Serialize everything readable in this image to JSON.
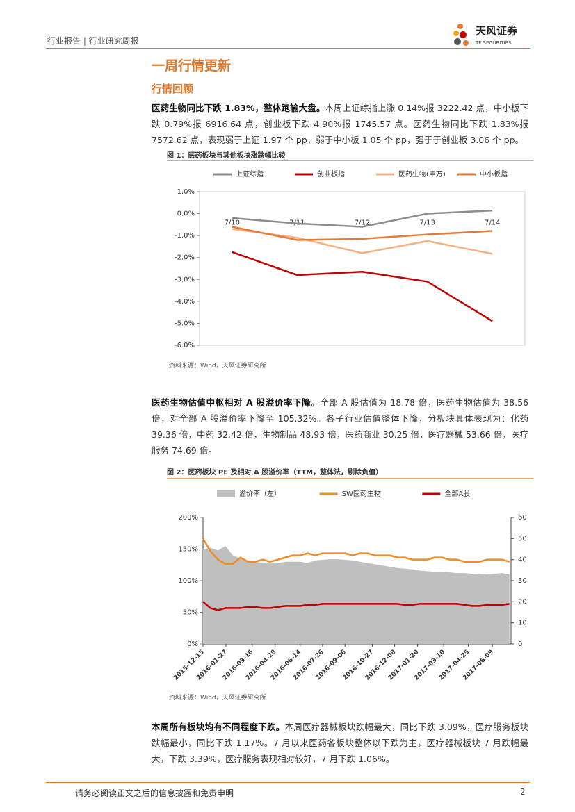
{
  "header": {
    "left": "行业报告 | 行业研究周报",
    "logo_cn": "天风证券",
    "logo_en": "TF SECURITIES"
  },
  "section_title": "一周行情更新",
  "subsection_title": "行情回顾",
  "paragraphs": [
    {
      "lead": "医药生物同比下跌 1.83%，整体跑输大盘。",
      "body": "本周上证综指上涨 0.14%报 3222.42 点，中小板下跌 0.79%报 6916.64 点，创业板下跌 4.90%报 1745.57 点。医药生物同比下跌 1.83%报 7572.62 点，表现弱于上证 1.97 个 pp，弱于中小板 1.05 个 pp，强于于创业板 3.06 个 pp。"
    },
    {
      "lead": "医药生物估值中枢相对 A 股溢价率下降。",
      "body": "全部 A 股估值为 18.78 倍，医药生物估值为 38.56 倍，对全部 A 股溢价率下降至 105.32%。各子行业估值整体下降，分板块具体表现为：化药 39.36 倍，中药 32.42 倍，生物制品 48.93 倍，医药商业 30.25 倍，医疗器械 53.66 倍，医疗服务 74.69 倍。"
    },
    {
      "lead": "本周所有板块均有不同程度下跌。",
      "body": "本周医疗器械板块跌幅最大，同比下跌 3.09%，医疗服务板块跌幅最小，同比下跌 1.17%。7 月以来医药各板块整体以下跌为主，医疗器械板块 7 月跌幅最大，下跌 3.39%，医疗服务表现相对较好，7 月下跌 1.06%。"
    }
  ],
  "figures": [
    {
      "title": "图 1：医药板块与其他板块涨跌幅比较",
      "source": "资料来源：Wind，天风证券研究所"
    },
    {
      "title": "图 2：医药板块 PE 及相对 A 股溢价率（TTM，整体法，剔除负值）",
      "source": "资料来源：Wind，天风证券研究所"
    }
  ],
  "chart_data": [
    {
      "type": "line",
      "categories": [
        "7/10",
        "7/11",
        "7/12",
        "7/13",
        "7/14"
      ],
      "series": [
        {
          "name": "上证综指",
          "color": "#8c8c8c",
          "values": [
            -0.2,
            -0.45,
            -0.6,
            0.0,
            0.14
          ]
        },
        {
          "name": "创业板指",
          "color": "#c00000",
          "values": [
            -1.75,
            -2.8,
            -2.65,
            -3.1,
            -4.9
          ]
        },
        {
          "name": "医药生物(申万)",
          "color": "#f4b183",
          "values": [
            -0.7,
            -1.1,
            -1.8,
            -1.25,
            -1.83
          ]
        },
        {
          "name": "中小板指",
          "color": "#e07b39",
          "values": [
            -0.6,
            -1.2,
            -1.15,
            -0.95,
            -0.79
          ]
        }
      ],
      "ylim": [
        -6,
        1
      ],
      "yticks": [
        {
          "value": -6,
          "label": "-6.0%"
        },
        {
          "value": -5,
          "label": "-5.0%"
        },
        {
          "value": -4,
          "label": "-4.0%"
        },
        {
          "value": -3,
          "label": "-3.0%"
        },
        {
          "value": -2,
          "label": "-2.0%"
        },
        {
          "value": -1,
          "label": "-1.0%"
        },
        {
          "value": 0,
          "label": "0.0%"
        },
        {
          "value": 1,
          "label": "1.0%"
        }
      ],
      "legend": "top"
    },
    {
      "type": "combo",
      "x": [
        "2015-12-15",
        "2015-12-29",
        "2016-01-12",
        "2016-01-26",
        "2016-02-09",
        "2016-02-23",
        "2016-03-08",
        "2016-03-22",
        "2016-04-05",
        "2016-04-19",
        "2016-05-03",
        "2016-05-17",
        "2016-05-31",
        "2016-06-14",
        "2016-06-28",
        "2016-07-12",
        "2016-07-26",
        "2016-08-09",
        "2016-08-23",
        "2016-09-06",
        "2016-09-20",
        "2016-10-04",
        "2016-10-18",
        "2016-11-01",
        "2016-11-15",
        "2016-11-29",
        "2016-12-13",
        "2016-12-27",
        "2017-01-10",
        "2017-01-24",
        "2017-02-07",
        "2017-02-21",
        "2017-03-07",
        "2017-03-21",
        "2017-04-04",
        "2017-04-18",
        "2017-05-02",
        "2017-05-16",
        "2017-05-30",
        "2017-06-13",
        "2017-06-27",
        "2017-07-11"
      ],
      "series": [
        {
          "name": "溢价率（左）",
          "kind": "area",
          "color": "#bfbfbf",
          "values": [
            150,
            152,
            148,
            155,
            140,
            135,
            132,
            130,
            128,
            127,
            128,
            130,
            130,
            130,
            128,
            132,
            133,
            134,
            134,
            133,
            132,
            130,
            128,
            126,
            124,
            122,
            120,
            119,
            118,
            116,
            115,
            114,
            114,
            113,
            112,
            112,
            111,
            111,
            110,
            111,
            112,
            110
          ]
        },
        {
          "name": "SW医药生物",
          "kind": "line",
          "axis": "y2",
          "color": "#f08a24",
          "values": [
            50,
            44,
            40,
            38,
            38,
            41,
            39,
            39,
            40,
            39,
            40,
            41,
            42,
            42,
            43,
            42,
            43,
            43,
            43,
            43,
            42,
            43,
            43,
            42,
            42,
            42,
            41,
            41,
            40,
            40,
            40,
            41,
            41,
            40,
            40,
            39,
            39,
            39,
            40,
            40,
            40,
            39
          ]
        },
        {
          "name": "全部A股",
          "kind": "line",
          "axis": "y2",
          "color": "#c00000",
          "values": [
            20,
            17,
            16,
            17,
            17,
            17,
            17.5,
            17.5,
            17,
            17,
            17.5,
            18,
            18,
            18,
            18.5,
            18.5,
            19,
            19,
            19,
            19,
            19,
            19,
            19,
            19,
            19,
            19,
            19,
            18.5,
            18.5,
            19,
            19,
            19,
            19,
            19,
            19,
            18.5,
            18,
            18,
            18.5,
            18.5,
            18.5,
            19
          ]
        }
      ],
      "xlim": [
        "2015-12-15",
        "2017-07-14"
      ],
      "xticks": [
        "2015-12-15",
        "2016-01-27",
        "2016-03-16",
        "2016-04-28",
        "2016-06-14",
        "2016-07-26",
        "2016-09-06",
        "2016-10-27",
        "2016-12-08",
        "2017-01-20",
        "2017-03-10",
        "2017-04-25",
        "2017-06-09"
      ],
      "ylim": [
        0,
        200
      ],
      "yticks": [
        {
          "value": 0,
          "label": "0%"
        },
        {
          "value": 50,
          "label": "50%"
        },
        {
          "value": 100,
          "label": "100%"
        },
        {
          "value": 150,
          "label": "150%"
        },
        {
          "value": 200,
          "label": "200%"
        }
      ],
      "y2lim": [
        0,
        60
      ],
      "y2ticks": [
        0,
        10,
        20,
        30,
        40,
        50,
        60
      ],
      "legend": "top"
    }
  ],
  "footer": {
    "disclaimer": "请务必阅读正文之后的信息披露和免责申明",
    "page": 2
  }
}
